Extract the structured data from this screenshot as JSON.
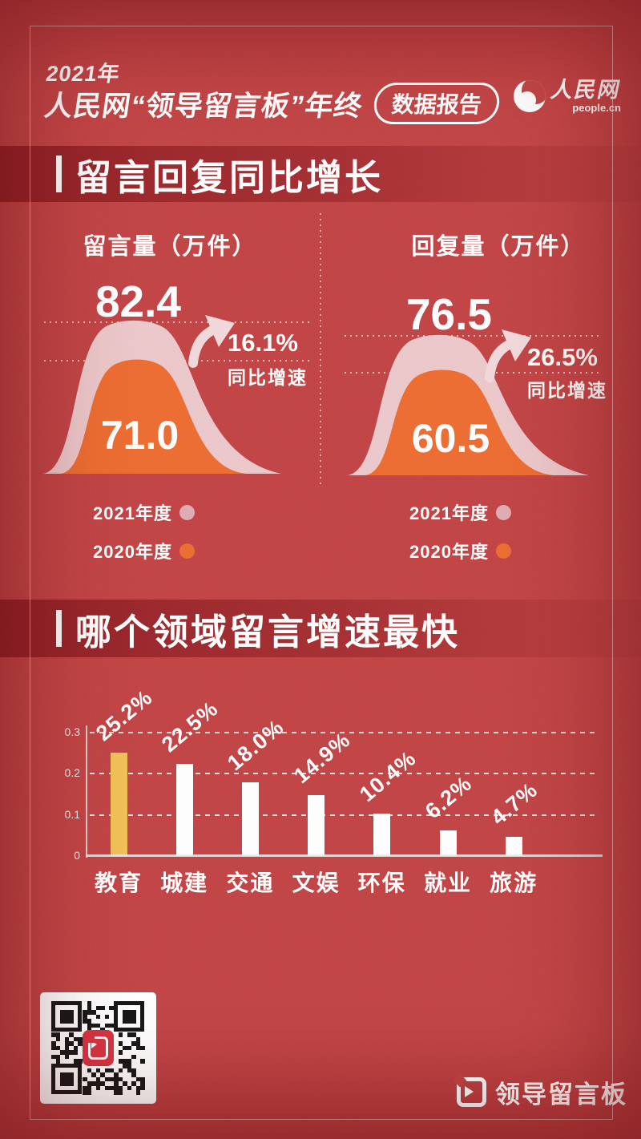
{
  "header": {
    "year": "2021年",
    "title": "人民网“领导留言板”年终",
    "badge": "数据报告",
    "brand": {
      "name": "人民网",
      "domain": "people.cn"
    }
  },
  "section1": {
    "title": "留言回复同比增长",
    "left": {
      "label": "留言量（万件）",
      "value_2021": "82.4",
      "value_2020": "71.0",
      "growth": "16.1%",
      "growth_label": "同比增速"
    },
    "right": {
      "label": "回复量（万件）",
      "value_2021": "76.5",
      "value_2020": "60.5",
      "growth": "26.5%",
      "growth_label": "同比增速"
    },
    "legend": [
      {
        "label": "2021年度",
        "color": "#dfacb2"
      },
      {
        "label": "2020年度",
        "color": "#ed6c30"
      }
    ]
  },
  "section2": {
    "title": "哪个领域留言增速最快"
  },
  "footer": {
    "logo_text": "领导留言板"
  },
  "colors": {
    "background": "#c24344",
    "band": "#86161c",
    "bell_2021": "#ecc8cb",
    "bell_2020": "#ed6c30",
    "bar_highlight": "#f2c157",
    "bar_default": "#ffffff"
  },
  "chart_data": [
    {
      "type": "area",
      "title": "留言量（万件）",
      "series": [
        {
          "name": "2021年度",
          "values": [
            82.4
          ]
        },
        {
          "name": "2020年度",
          "values": [
            71.0
          ]
        }
      ],
      "annotation": "16.1% 同比增速"
    },
    {
      "type": "area",
      "title": "回复量（万件）",
      "series": [
        {
          "name": "2021年度",
          "values": [
            76.5
          ]
        },
        {
          "name": "2020年度",
          "values": [
            60.5
          ]
        }
      ],
      "annotation": "26.5% 同比增速"
    },
    {
      "type": "bar",
      "title": "哪个领域留言增速最快",
      "categories": [
        "教育",
        "城建",
        "交通",
        "文娱",
        "环保",
        "就业",
        "旅游"
      ],
      "values": [
        25.2,
        22.5,
        18.0,
        14.9,
        10.4,
        6.2,
        4.7
      ],
      "labels": [
        "25.2%",
        "22.5%",
        "18.0%",
        "14.9%",
        "10.4%",
        "6.2%",
        "4.7%"
      ],
      "unit": "%",
      "ylim": [
        0,
        0.3
      ],
      "yticks": [
        "0",
        "0.1",
        "0.2",
        "0.3"
      ],
      "grid": true,
      "bar_colors": [
        "#f2c157",
        "#ffffff",
        "#ffffff",
        "#ffffff",
        "#ffffff",
        "#ffffff",
        "#ffffff"
      ]
    }
  ]
}
